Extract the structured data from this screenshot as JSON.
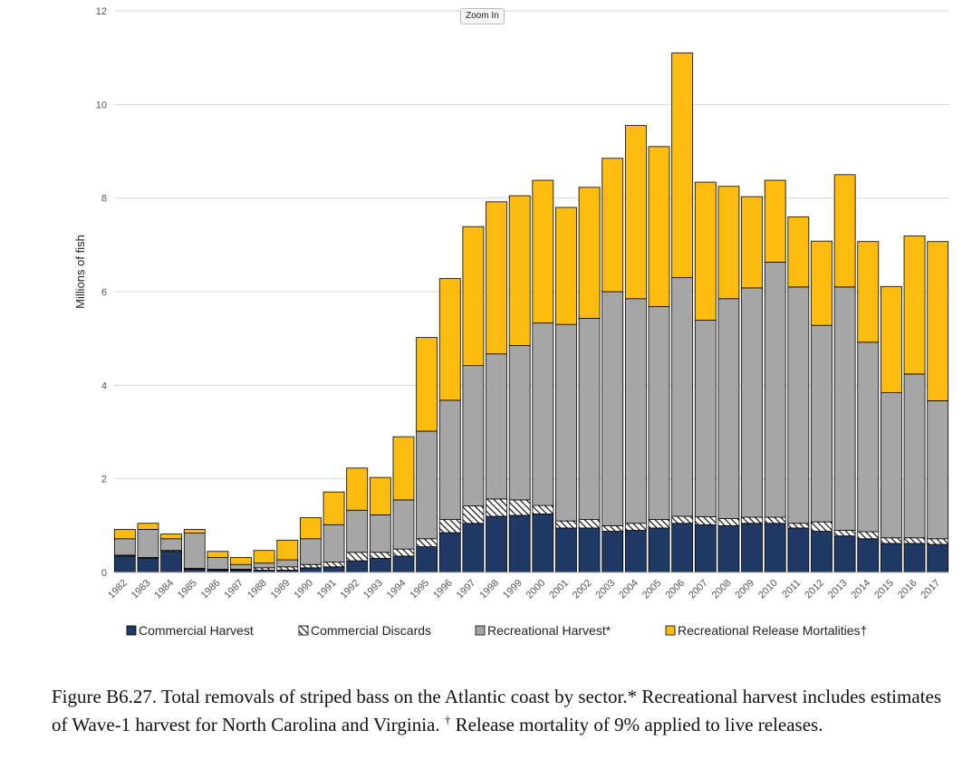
{
  "zoom_label": "Zoom In",
  "caption": {
    "lead": "Figure B6.27. Total removals of striped bass on the Atlantic coast by sector.* Recreational harvest includes estimates of Wave-1 harvest for North Carolina and Virginia.",
    "dagger": "†",
    "tail": "Release mortality of 9% applied to live releases."
  },
  "chart_data": {
    "type": "bar",
    "stacked": true,
    "title": "",
    "xlabel": "",
    "ylabel": "Millions of fish",
    "ylim": [
      0,
      12
    ],
    "yticks": [
      0,
      2,
      4,
      6,
      8,
      10,
      12
    ],
    "grid": true,
    "legend_position": "bottom",
    "categories": [
      "1982",
      "1983",
      "1984",
      "1985",
      "1986",
      "1987",
      "1988",
      "1989",
      "1990",
      "1991",
      "1992",
      "1993",
      "1994",
      "1995",
      "1996",
      "1997",
      "1998",
      "1999",
      "2000",
      "2001",
      "2002",
      "2003",
      "2004",
      "2005",
      "2006",
      "2007",
      "2008",
      "2009",
      "2010",
      "2011",
      "2012",
      "2013",
      "2014",
      "2015",
      "2016",
      "2017"
    ],
    "series": [
      {
        "name": "Commercial Harvest",
        "color": "#1f3864",
        "pattern": "solid",
        "values": [
          0.35,
          0.3,
          0.45,
          0.07,
          0.05,
          0.05,
          0.05,
          0.05,
          0.1,
          0.12,
          0.25,
          0.3,
          0.35,
          0.55,
          0.85,
          1.05,
          1.2,
          1.22,
          1.25,
          0.95,
          0.95,
          0.88,
          0.9,
          0.95,
          1.05,
          1.02,
          1.0,
          1.05,
          1.05,
          0.95,
          0.88,
          0.78,
          0.72,
          0.62,
          0.62,
          0.6
        ]
      },
      {
        "name": "Commercial Discards",
        "color": "#ffffff",
        "pattern": "hatch",
        "values": [
          0.02,
          0.02,
          0.02,
          0.02,
          0.02,
          0.02,
          0.05,
          0.07,
          0.07,
          0.1,
          0.18,
          0.13,
          0.15,
          0.17,
          0.28,
          0.37,
          0.37,
          0.33,
          0.18,
          0.15,
          0.18,
          0.12,
          0.15,
          0.18,
          0.15,
          0.17,
          0.15,
          0.13,
          0.13,
          0.1,
          0.2,
          0.12,
          0.15,
          0.12,
          0.12,
          0.12
        ]
      },
      {
        "name": "Recreational Harvest*",
        "color": "#a6a6a6",
        "pattern": "solid",
        "values": [
          0.35,
          0.6,
          0.25,
          0.75,
          0.25,
          0.1,
          0.1,
          0.15,
          0.55,
          0.8,
          0.9,
          0.8,
          1.05,
          2.3,
          2.55,
          3.0,
          3.1,
          3.3,
          3.9,
          4.2,
          4.3,
          5.0,
          4.8,
          4.55,
          5.1,
          4.2,
          4.7,
          4.9,
          5.45,
          5.05,
          4.2,
          5.2,
          4.05,
          3.1,
          3.5,
          2.95
        ]
      },
      {
        "name": "Recreational Release Mortalities†",
        "color": "#fbbc0f",
        "pattern": "solid",
        "values": [
          0.2,
          0.13,
          0.1,
          0.08,
          0.13,
          0.15,
          0.27,
          0.42,
          0.45,
          0.7,
          0.9,
          0.8,
          1.35,
          2.0,
          2.6,
          2.97,
          3.25,
          3.2,
          3.05,
          2.5,
          2.8,
          2.85,
          3.7,
          3.42,
          4.8,
          2.95,
          2.4,
          1.95,
          1.75,
          1.5,
          1.8,
          2.4,
          2.15,
          2.27,
          2.95,
          3.4
        ]
      }
    ]
  }
}
